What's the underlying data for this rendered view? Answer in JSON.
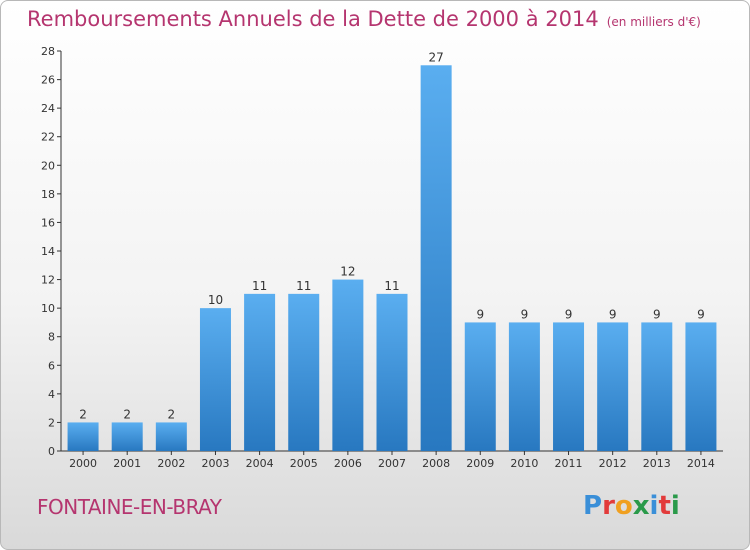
{
  "page": {
    "title": "Remboursements Annuels de la Dette de 2000 à 2014",
    "unit": "(en milliers d'€)",
    "commune": "FONTAINE-EN-BRAY",
    "logo": {
      "text": "Proxiti",
      "letters": [
        "P",
        "r",
        "o",
        "x",
        "i",
        "t",
        "i"
      ],
      "colors": [
        "#3a8fd8",
        "#e23b3b",
        "#f0a020",
        "#2a9a4a",
        "#3a8fd8",
        "#e23b3b",
        "#2a9a4a"
      ]
    }
  },
  "chart_data": {
    "type": "bar",
    "categories": [
      "2000",
      "2001",
      "2002",
      "2003",
      "2004",
      "2005",
      "2006",
      "2007",
      "2008",
      "2009",
      "2010",
      "2011",
      "2012",
      "2013",
      "2014"
    ],
    "values": [
      2,
      2,
      2,
      10,
      11,
      11,
      12,
      11,
      27,
      9,
      9,
      9,
      9,
      9,
      9
    ],
    "ylim": [
      0,
      28
    ],
    "yticks": [
      0,
      2,
      4,
      6,
      8,
      10,
      12,
      14,
      16,
      18,
      20,
      22,
      24,
      26,
      28
    ],
    "grid": false,
    "colors": {
      "bar_top": "#5aaef0",
      "bar_bottom": "#2878c0",
      "axis": "#333333",
      "text": "#333333",
      "title": "#b5356f"
    }
  }
}
